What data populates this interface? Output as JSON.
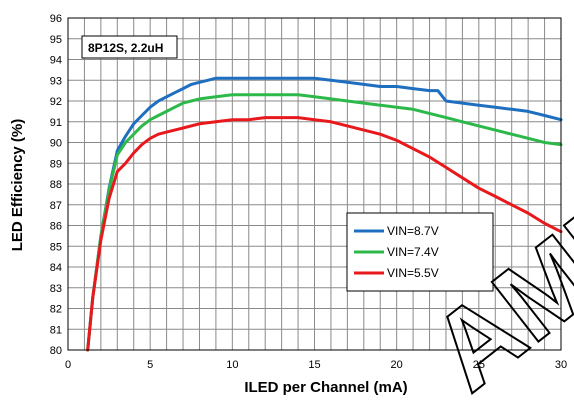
{
  "chart_data": {
    "type": "line",
    "xlabel": "ILED per Channel (mA)",
    "ylabel": "LED Efficiency (%)",
    "annotation": "8P12S, 2.2uH",
    "xlim": [
      0,
      30
    ],
    "ylim": [
      80,
      96
    ],
    "xticks": [
      0,
      5,
      10,
      15,
      20,
      25,
      30
    ],
    "yticks": [
      80,
      81,
      82,
      83,
      84,
      85,
      86,
      87,
      88,
      89,
      90,
      91,
      92,
      93,
      94,
      95,
      96
    ],
    "x_minor_step": 1,
    "grid": true,
    "legend_position": "lower-right",
    "watermark": "AMENDED",
    "series": [
      {
        "name": "VIN=8.7V",
        "color": "#1f6fc0",
        "x": [
          1.2,
          1.5,
          2.0,
          2.5,
          3.0,
          3.5,
          4.0,
          4.5,
          5.0,
          5.5,
          6.0,
          6.5,
          7.0,
          7.5,
          8.0,
          8.5,
          9.0,
          9.5,
          10.0,
          11.0,
          12.0,
          13.0,
          14.0,
          15.0,
          16.0,
          17.0,
          18.0,
          19.0,
          20.0,
          21.0,
          22.0,
          22.5,
          23.0,
          24.0,
          25.0,
          26.0,
          27.0,
          28.0,
          29.0,
          30.0
        ],
        "y": [
          80.0,
          82.5,
          85.5,
          87.8,
          89.6,
          90.3,
          90.9,
          91.3,
          91.7,
          92.0,
          92.2,
          92.4,
          92.6,
          92.8,
          92.9,
          93.0,
          93.1,
          93.1,
          93.1,
          93.1,
          93.1,
          93.1,
          93.1,
          93.1,
          93.0,
          92.9,
          92.8,
          92.7,
          92.7,
          92.6,
          92.5,
          92.5,
          92.0,
          91.9,
          91.8,
          91.7,
          91.6,
          91.5,
          91.3,
          91.1
        ]
      },
      {
        "name": "VIN=7.4V",
        "color": "#2db84a",
        "x": [
          1.2,
          1.5,
          2.0,
          2.5,
          3.0,
          3.5,
          4.0,
          4.5,
          5.0,
          5.5,
          6.0,
          6.5,
          7.0,
          7.5,
          8.0,
          9.0,
          10.0,
          11.0,
          12.0,
          13.0,
          14.0,
          15.0,
          16.0,
          17.0,
          18.0,
          19.0,
          20.0,
          21.0,
          22.0,
          23.0,
          24.0,
          25.0,
          26.0,
          27.0,
          28.0,
          29.0,
          30.0
        ],
        "y": [
          80.0,
          82.5,
          85.5,
          87.7,
          89.4,
          90.0,
          90.4,
          90.8,
          91.1,
          91.3,
          91.5,
          91.7,
          91.9,
          92.0,
          92.1,
          92.2,
          92.3,
          92.3,
          92.3,
          92.3,
          92.3,
          92.2,
          92.1,
          92.0,
          91.9,
          91.8,
          91.7,
          91.6,
          91.4,
          91.2,
          91.0,
          90.8,
          90.6,
          90.4,
          90.2,
          90.0,
          89.9
        ]
      },
      {
        "name": "VIN=5.5V",
        "color": "#e8191c",
        "x": [
          1.2,
          1.5,
          2.0,
          2.5,
          3.0,
          3.5,
          4.0,
          4.5,
          5.0,
          5.5,
          6.0,
          7.0,
          8.0,
          9.0,
          10.0,
          11.0,
          12.0,
          13.0,
          14.0,
          15.0,
          16.0,
          17.0,
          18.0,
          19.0,
          20.0,
          21.0,
          22.0,
          23.0,
          24.0,
          25.0,
          26.0,
          27.0,
          28.0,
          29.0,
          30.0
        ],
        "y": [
          80.0,
          82.5,
          85.3,
          87.3,
          88.6,
          89.0,
          89.5,
          89.9,
          90.2,
          90.4,
          90.5,
          90.7,
          90.9,
          91.0,
          91.1,
          91.1,
          91.2,
          91.2,
          91.2,
          91.1,
          91.0,
          90.8,
          90.6,
          90.4,
          90.1,
          89.7,
          89.3,
          88.8,
          88.3,
          87.8,
          87.4,
          87.0,
          86.6,
          86.1,
          85.7
        ]
      }
    ]
  }
}
